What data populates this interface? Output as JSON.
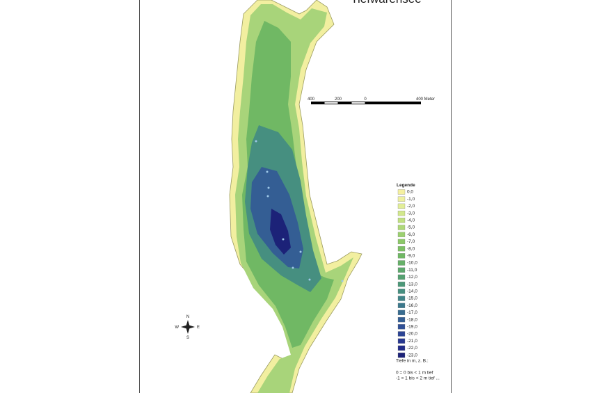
{
  "title": "Tiefwarensee",
  "scale_bar": {
    "labels": [
      "400",
      "200",
      "0",
      "400 Meter"
    ]
  },
  "compass": {
    "north": "N",
    "south": "S",
    "west": "W",
    "east": "E"
  },
  "legend": {
    "title": "Legende",
    "items": [
      {
        "label": "0,0",
        "color": "#f5f0a0"
      },
      {
        "label": "-1,0",
        "color": "#eef0a0"
      },
      {
        "label": "-2,0",
        "color": "#e2ee98"
      },
      {
        "label": "-3,0",
        "color": "#d2e88c"
      },
      {
        "label": "-4,0",
        "color": "#c0e080"
      },
      {
        "label": "-5,0",
        "color": "#aed878"
      },
      {
        "label": "-6,0",
        "color": "#9cd070"
      },
      {
        "label": "-7,0",
        "color": "#8cc868"
      },
      {
        "label": "-8,0",
        "color": "#7cc064"
      },
      {
        "label": "-9,0",
        "color": "#70b864"
      },
      {
        "label": "-10,0",
        "color": "#66b068"
      },
      {
        "label": "-11,0",
        "color": "#5ca86c"
      },
      {
        "label": "-12,0",
        "color": "#54a070"
      },
      {
        "label": "-13,0",
        "color": "#4c9878"
      },
      {
        "label": "-14,0",
        "color": "#468f80"
      },
      {
        "label": "-15,0",
        "color": "#408488"
      },
      {
        "label": "-16,0",
        "color": "#3c788c"
      },
      {
        "label": "-17,0",
        "color": "#386c90"
      },
      {
        "label": "-18,0",
        "color": "#345e94"
      },
      {
        "label": "-19,0",
        "color": "#305096"
      },
      {
        "label": "-20,0",
        "color": "#2c4494"
      },
      {
        "label": "-21,0",
        "color": "#283890"
      },
      {
        "label": "-22,0",
        "color": "#222c88"
      },
      {
        "label": "-23,0",
        "color": "#1c2278"
      }
    ],
    "note": [
      "Tiefe in m, z. B.:",
      "0 = 0 bis < 1 m tief",
      "-1 = 1 bis < 2 m tief ..."
    ]
  }
}
